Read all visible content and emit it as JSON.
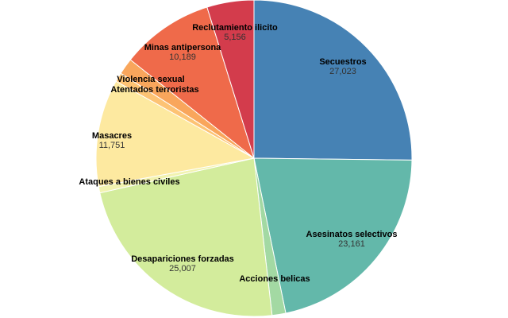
{
  "chart_data": {
    "type": "pie",
    "title": "",
    "legend": "none",
    "slices": [
      {
        "label": "Secuestros",
        "value": 27023,
        "value_label": "27,023",
        "color": "#4682b4"
      },
      {
        "label": "Asesinatos selectivos",
        "value": 23161,
        "value_label": "23,161",
        "color": "#63b8aa"
      },
      {
        "label": "Acciones belicas",
        "value": 1500,
        "value_label": "",
        "color": "#a3d9a3"
      },
      {
        "label": "Desapariciones forzadas",
        "value": 25007,
        "value_label": "25,007",
        "color": "#d3ec9c"
      },
      {
        "label": "Ataques a bienes civiles",
        "value": 700,
        "value_label": "",
        "color": "#f2f3b0"
      },
      {
        "label": "Masacres",
        "value": 11751,
        "value_label": "11,751",
        "color": "#fde9a0"
      },
      {
        "label": "Atentados terroristas",
        "value": 1000,
        "value_label": "",
        "color": "#fdc374"
      },
      {
        "label": "Violencia sexual",
        "value": 1800,
        "value_label": "",
        "color": "#f9a65c"
      },
      {
        "label": "Minas antipersona",
        "value": 10189,
        "value_label": "10,189",
        "color": "#ef6a4a"
      },
      {
        "label": "Reclutamiento ilicito",
        "value": 5156,
        "value_label": "5,156",
        "color": "#d33c4c"
      }
    ]
  }
}
